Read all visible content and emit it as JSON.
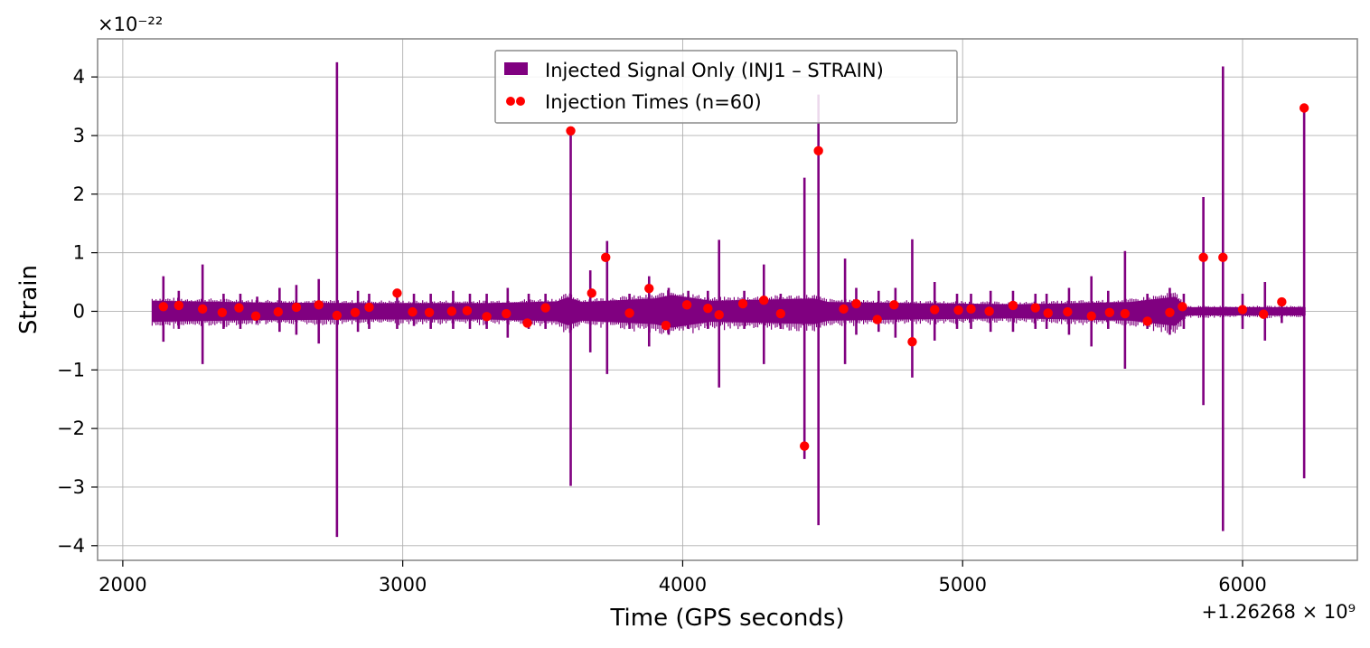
{
  "chart_data": {
    "type": "line",
    "title": "",
    "xlabel": "Time (GPS seconds)",
    "ylabel": "Strain",
    "x_offset_label": "+1.26268 × 10⁹",
    "x_offset_value": 1262680000,
    "y_scale_label": "×10⁻²²",
    "y_scale_value": 1e-22,
    "xlim": [
      1910,
      6410
    ],
    "ylim": [
      -4.25,
      4.65
    ],
    "x_ticks": [
      2000,
      3000,
      4000,
      5000,
      6000
    ],
    "x_tick_labels": [
      "2000",
      "3000",
      "4000",
      "5000",
      "6000"
    ],
    "y_ticks": [
      4,
      3,
      2,
      1,
      0,
      -1,
      -2,
      -3,
      -4
    ],
    "y_tick_labels": [
      "4",
      "3",
      "2",
      "1",
      "0",
      "−1",
      "−2",
      "−3",
      "−4"
    ],
    "grid": true,
    "legend_position": "top-center",
    "series": [
      {
        "name": "Injected Signal Only (INJ1 – STRAIN)",
        "kind": "line",
        "color": "#800080",
        "x_range": [
          2105,
          6225
        ],
        "band_envelope": [
          [
            2105,
            0.18
          ],
          [
            2500,
            0.15
          ],
          [
            2900,
            0.14
          ],
          [
            3300,
            0.14
          ],
          [
            3550,
            0.17
          ],
          [
            3590,
            0.24
          ],
          [
            3640,
            0.16
          ],
          [
            3900,
            0.22
          ],
          [
            3960,
            0.28
          ],
          [
            4100,
            0.18
          ],
          [
            4300,
            0.2
          ],
          [
            4470,
            0.22
          ],
          [
            4520,
            0.16
          ],
          [
            4800,
            0.14
          ],
          [
            5200,
            0.12
          ],
          [
            5600,
            0.16
          ],
          [
            5760,
            0.25
          ],
          [
            5800,
            0.07
          ],
          [
            6225,
            0.07
          ]
        ],
        "spikes": [
          [
            2145,
            0.6,
            -0.52
          ],
          [
            2200,
            0.35,
            -0.3
          ],
          [
            2285,
            0.8,
            -0.9
          ],
          [
            2360,
            0.3,
            -0.3
          ],
          [
            2420,
            0.3,
            -0.3
          ],
          [
            2480,
            0.25,
            -0.2
          ],
          [
            2560,
            0.4,
            -0.35
          ],
          [
            2620,
            0.45,
            -0.4
          ],
          [
            2700,
            0.55,
            -0.55
          ],
          [
            2765,
            4.25,
            -3.85
          ],
          [
            2840,
            0.35,
            -0.35
          ],
          [
            2880,
            0.3,
            -0.3
          ],
          [
            2980,
            0.35,
            -0.3
          ],
          [
            3040,
            0.3,
            -0.25
          ],
          [
            3100,
            0.3,
            -0.3
          ],
          [
            3180,
            0.35,
            -0.3
          ],
          [
            3240,
            0.3,
            -0.3
          ],
          [
            3300,
            0.3,
            -0.3
          ],
          [
            3375,
            0.4,
            -0.45
          ],
          [
            3450,
            0.3,
            -0.3
          ],
          [
            3510,
            0.3,
            -0.3
          ],
          [
            3600,
            3.1,
            -2.98
          ],
          [
            3670,
            0.7,
            -0.7
          ],
          [
            3730,
            1.2,
            -1.07
          ],
          [
            3810,
            0.3,
            -0.3
          ],
          [
            3880,
            0.6,
            -0.6
          ],
          [
            3950,
            0.4,
            -0.4
          ],
          [
            4020,
            0.35,
            -0.3
          ],
          [
            4090,
            0.35,
            -0.3
          ],
          [
            4130,
            1.22,
            -1.3
          ],
          [
            4220,
            0.35,
            -0.3
          ],
          [
            4290,
            0.8,
            -0.9
          ],
          [
            4350,
            0.3,
            -0.3
          ],
          [
            4435,
            2.28,
            -2.52
          ],
          [
            4485,
            3.7,
            -3.65
          ],
          [
            4580,
            0.9,
            -0.9
          ],
          [
            4620,
            0.4,
            -0.4
          ],
          [
            4700,
            0.35,
            -0.35
          ],
          [
            4760,
            0.4,
            -0.45
          ],
          [
            4820,
            1.23,
            -1.13
          ],
          [
            4900,
            0.5,
            -0.5
          ],
          [
            4980,
            0.3,
            -0.3
          ],
          [
            5030,
            0.3,
            -0.3
          ],
          [
            5100,
            0.35,
            -0.35
          ],
          [
            5180,
            0.35,
            -0.35
          ],
          [
            5260,
            0.3,
            -0.3
          ],
          [
            5300,
            0.3,
            -0.3
          ],
          [
            5380,
            0.4,
            -0.4
          ],
          [
            5460,
            0.6,
            -0.6
          ],
          [
            5520,
            0.35,
            -0.3
          ],
          [
            5580,
            1.03,
            -0.98
          ],
          [
            5660,
            0.3,
            -0.3
          ],
          [
            5740,
            0.4,
            -0.4
          ],
          [
            5790,
            0.3,
            -0.3
          ],
          [
            5860,
            1.95,
            -1.6
          ],
          [
            5930,
            4.18,
            -3.75
          ],
          [
            6000,
            0.3,
            -0.3
          ],
          [
            6080,
            0.5,
            -0.5
          ],
          [
            6140,
            0.2,
            -0.2
          ],
          [
            6220,
            3.47,
            -2.85
          ]
        ]
      },
      {
        "name": "Injection Times (n=60)",
        "kind": "scatter",
        "color": "#ff0000",
        "x": [
          2145,
          2200,
          2285,
          2355,
          2415,
          2475,
          2555,
          2620,
          2700,
          2765,
          2830,
          2880,
          2980,
          3035,
          3095,
          3175,
          3230,
          3300,
          3370,
          3445,
          3510,
          3600,
          3675,
          3725,
          3810,
          3880,
          3940,
          4015,
          4090,
          4130,
          4215,
          4290,
          4350,
          4435,
          4485,
          4575,
          4620,
          4695,
          4755,
          4820,
          4900,
          4985,
          5030,
          5095,
          5180,
          5260,
          5305,
          5375,
          5460,
          5525,
          5580,
          5660,
          5740,
          5785,
          5860,
          5930,
          6000,
          6075,
          6140,
          6220
        ],
        "y": [
          0.08,
          0.1,
          0.04,
          -0.02,
          0.06,
          -0.08,
          -0.01,
          0.07,
          0.11,
          -0.07,
          -0.02,
          0.07,
          0.31,
          -0.01,
          -0.02,
          0.0,
          0.01,
          -0.09,
          -0.04,
          -0.2,
          0.06,
          3.08,
          0.31,
          0.92,
          -0.03,
          0.39,
          -0.24,
          0.11,
          0.05,
          -0.06,
          0.13,
          0.19,
          -0.04,
          -2.3,
          2.74,
          0.04,
          0.13,
          -0.14,
          0.11,
          -0.52,
          0.03,
          0.02,
          0.04,
          0.0,
          0.1,
          0.06,
          -0.03,
          -0.01,
          -0.08,
          -0.02,
          -0.04,
          -0.17,
          -0.02,
          0.08,
          0.92,
          0.92,
          0.03,
          -0.05,
          0.16,
          3.47
        ]
      }
    ]
  }
}
